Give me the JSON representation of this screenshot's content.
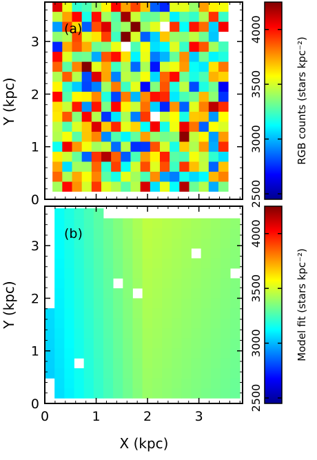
{
  "chart_data": [
    {
      "type": "heatmap",
      "panel_label": "(a)",
      "ylabel": "Y (kpc)",
      "colorbar_label": "RGB counts (stars kpc⁻²)",
      "xlim": [
        0,
        3.85
      ],
      "ylim": [
        0,
        3.75
      ],
      "x_ticks": [
        "0",
        "1",
        "2",
        "3"
      ],
      "y_ticks": [
        "0",
        "1",
        "2",
        "3"
      ],
      "x_tick_values": [
        0,
        1,
        2,
        3
      ],
      "y_tick_values": [
        0,
        1,
        2,
        3
      ],
      "color_range": [
        2450,
        4250
      ],
      "colorbar_ticks": [
        "2500",
        "3000",
        "3500",
        "4000"
      ],
      "colorbar_tick_values": [
        2500,
        3000,
        3500,
        4000
      ],
      "grid": {
        "x0": 0.15,
        "y0": 0.15,
        "cell": 0.19,
        "nx": 18,
        "ny": 19,
        "distribution": "noisy, mean ~3450, range 2450-4250"
      },
      "missing_cells": [
        [
          11,
          16
        ],
        [
          7,
          14
        ],
        [
          10,
          7
        ],
        [
          17,
          15
        ]
      ]
    },
    {
      "type": "heatmap",
      "panel_label": "(b)",
      "xlabel": "X (kpc)",
      "ylabel": "Y (kpc)",
      "colorbar_label": "Model fit (stars kpc⁻²)",
      "xlim": [
        0,
        3.85
      ],
      "ylim": [
        0,
        3.75
      ],
      "x_ticks": [
        "0",
        "1",
        "2",
        "3"
      ],
      "y_ticks": [
        "0",
        "1",
        "2",
        "3"
      ],
      "x_tick_values": [
        0,
        1,
        2,
        3
      ],
      "y_tick_values": [
        0,
        1,
        2,
        3
      ],
      "color_range": [
        2450,
        4250
      ],
      "colorbar_ticks": [
        "2500",
        "3000",
        "3500",
        "4000"
      ],
      "colorbar_tick_values": [
        2500,
        3000,
        3500,
        4000
      ],
      "model": {
        "form": "smooth gradient in X",
        "value_at_x0": 3050,
        "value_at_x2": 3430,
        "value_at_x3p8": 3340
      },
      "missing_cells": [
        [
          3,
          3
        ],
        [
          7,
          11
        ],
        [
          9,
          10
        ],
        [
          15,
          14
        ],
        [
          19,
          12
        ]
      ]
    }
  ]
}
